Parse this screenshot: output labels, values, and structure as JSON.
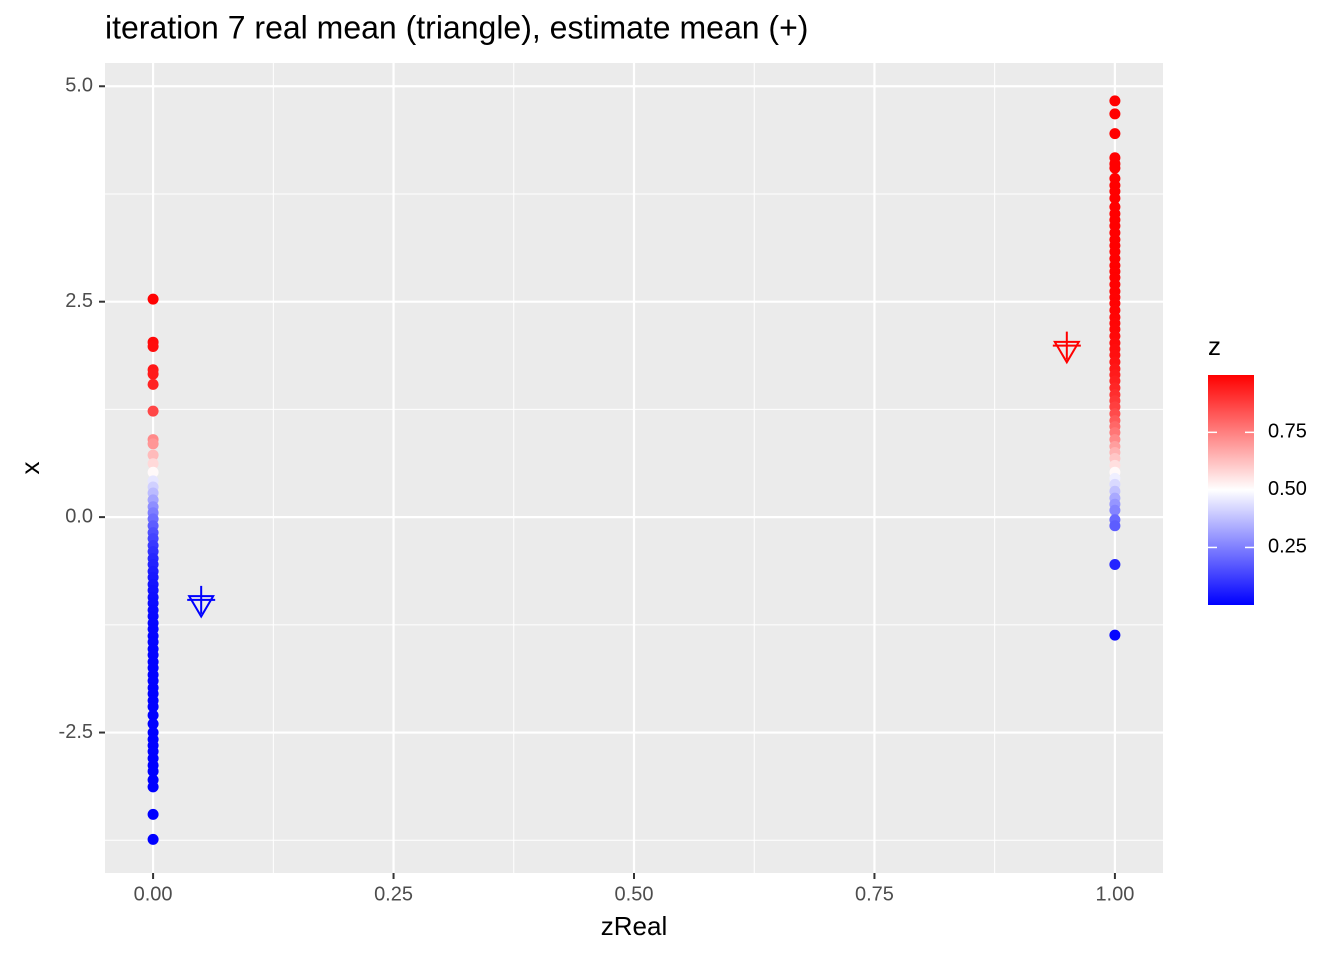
{
  "chart_data": {
    "type": "scatter",
    "title": "iteration 7 real mean (triangle), estimate mean (+)",
    "x_label": "zReal",
    "y_label": "x",
    "legend_title": "z",
    "xlim": [
      -0.05,
      1.05
    ],
    "xticks": [
      {
        "value": 0,
        "label": "0.00"
      },
      {
        "value": 0.25,
        "label": "0.25"
      },
      {
        "value": 0.5,
        "label": "0.50"
      },
      {
        "value": 0.75,
        "label": "0.75"
      },
      {
        "value": 1,
        "label": "1.00"
      }
    ],
    "ylim": [
      -4.13,
      5.27
    ],
    "yticks": [
      -2.5,
      {
        "value": 0,
        "label": "0.0"
      },
      2.5,
      {
        "value": 5,
        "label": "5.0"
      }
    ],
    "colorlim": [
      0,
      0.999
    ],
    "colorticks": [
      0.25,
      {
        "value": 0.5,
        "label": "0.50"
      },
      0.75
    ],
    "color_low": "#0000ff",
    "color_mid": "#ffffff",
    "color_high": "#ff0000",
    "color_midpoint": 0.5,
    "grid": true,
    "legend_position": "right",
    "series": [
      {
        "shape": "circle",
        "x": [
          0,
          0,
          0,
          0,
          0,
          0,
          0,
          0,
          0,
          0,
          0,
          0,
          0,
          0,
          0,
          0,
          0,
          0,
          0,
          0,
          0,
          0,
          0,
          0,
          0,
          0,
          0,
          0,
          0,
          0,
          0,
          0,
          0,
          0,
          0,
          0,
          0,
          0,
          0,
          0,
          0,
          0,
          0,
          0,
          0,
          0,
          0,
          0,
          0,
          0,
          0,
          0,
          0,
          0,
          0,
          0,
          0,
          0,
          0,
          0,
          0
        ],
        "y": [
          2.53,
          2.03,
          1.98,
          1.71,
          1.66,
          1.54,
          1.23,
          0.9,
          0.85,
          0.72,
          0.62,
          0.52,
          0.42,
          0.35,
          0.28,
          0.2,
          0.12,
          0.05,
          -0.02,
          -0.1,
          -0.18,
          -0.25,
          -0.33,
          -0.4,
          -0.48,
          -0.55,
          -0.63,
          -0.7,
          -0.78,
          -0.85,
          -0.93,
          -1.0,
          -1.08,
          -1.15,
          -1.23,
          -1.3,
          -1.38,
          -1.45,
          -1.53,
          -1.6,
          -1.68,
          -1.75,
          -1.83,
          -1.9,
          -1.98,
          -2.05,
          -2.13,
          -2.2,
          -2.3,
          -2.4,
          -2.5,
          -2.58,
          -2.65,
          -2.72,
          -2.8,
          -2.88,
          -2.95,
          -3.05,
          -3.13,
          -3.45,
          -3.74
        ],
        "z": [
          0.994,
          0.979,
          0.976,
          0.954,
          0.948,
          0.931,
          0.861,
          0.731,
          0.706,
          0.634,
          0.574,
          0.512,
          0.45,
          0.407,
          0.366,
          0.321,
          0.279,
          0.245,
          0.214,
          0.182,
          0.154,
          0.133,
          0.112,
          0.095,
          0.079,
          0.068,
          0.056,
          0.047,
          0.039,
          0.033,
          0.027,
          0.023,
          0.019,
          0.016,
          0.013,
          0.011,
          0.009,
          0.008,
          0.006,
          0.005,
          0.004,
          0.004,
          0.003,
          0.003,
          0.002,
          0.002,
          0.002,
          0.001,
          0.001,
          0.001,
          0.001,
          0.001,
          0.001,
          0.001,
          0,
          0,
          0,
          0,
          0,
          0,
          0
        ]
      },
      {
        "shape": "circle",
        "x": [
          1,
          1,
          1,
          1,
          1,
          1,
          1,
          1,
          1,
          1,
          1,
          1,
          1,
          1,
          1,
          1,
          1,
          1,
          1,
          1,
          1,
          1,
          1,
          1,
          1,
          1,
          1,
          1,
          1,
          1,
          1,
          1,
          1,
          1,
          1,
          1,
          1,
          1,
          1,
          1,
          1,
          1,
          1,
          1,
          1,
          1,
          1,
          1,
          1,
          1,
          1,
          1,
          1,
          1,
          1,
          1,
          1,
          1,
          1,
          1,
          1,
          1
        ],
        "y": [
          4.83,
          4.68,
          4.45,
          4.17,
          4.1,
          4.05,
          3.93,
          3.85,
          3.78,
          3.7,
          3.6,
          3.52,
          3.45,
          3.38,
          3.3,
          3.22,
          3.15,
          3.08,
          3.0,
          2.92,
          2.85,
          2.78,
          2.7,
          2.62,
          2.55,
          2.48,
          2.4,
          2.32,
          2.25,
          2.18,
          2.1,
          2.02,
          1.95,
          1.88,
          1.8,
          1.72,
          1.65,
          1.58,
          1.5,
          1.42,
          1.35,
          1.28,
          1.2,
          1.12,
          1.05,
          0.98,
          0.9,
          0.82,
          0.75,
          0.68,
          0.6,
          0.52,
          0.45,
          0.38,
          0.3,
          0.22,
          0.15,
          0.08,
          -0.03,
          -0.1,
          -0.55,
          -1.37
        ],
        "z": [
          0.999,
          0.999,
          0.999,
          0.999,
          0.999,
          0.999,
          0.999,
          0.999,
          0.999,
          0.999,
          0.999,
          0.999,
          0.999,
          0.999,
          0.999,
          0.999,
          0.999,
          0.999,
          0.999,
          0.998,
          0.997,
          0.997,
          0.996,
          0.995,
          0.994,
          0.993,
          0.991,
          0.99,
          0.988,
          0.985,
          0.982,
          0.978,
          0.974,
          0.969,
          0.963,
          0.955,
          0.946,
          0.937,
          0.924,
          0.909,
          0.893,
          0.875,
          0.852,
          0.825,
          0.798,
          0.768,
          0.731,
          0.69,
          0.651,
          0.611,
          0.562,
          0.512,
          0.469,
          0.426,
          0.378,
          0.332,
          0.294,
          0.259,
          0.206,
          0.182,
          0.068,
          0.012
        ]
      },
      {
        "shape": "triangle-down",
        "x": [
          0.05,
          0.95
        ],
        "y": [
          -1.0,
          1.95
        ],
        "colors": [
          "#0000ff",
          "#ff0000"
        ]
      },
      {
        "shape": "plus",
        "x": [
          0.05,
          0.95
        ],
        "y": [
          -0.96,
          1.99
        ],
        "colors": [
          "#0000ff",
          "#ff0000"
        ]
      }
    ]
  }
}
